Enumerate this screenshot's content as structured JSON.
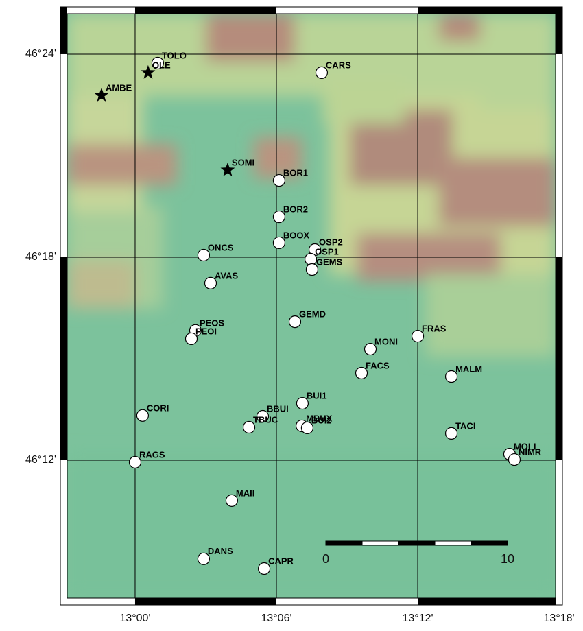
{
  "map": {
    "xlim": [
      12.9471,
      13.3024
    ],
    "ylim": [
      46.1287,
      46.4233
    ],
    "xticks": [
      {
        "value": 13.0,
        "label": "13°00'"
      },
      {
        "value": 13.1,
        "label": "13°06'"
      },
      {
        "value": 13.2,
        "label": "13°12'"
      },
      {
        "value": 13.3,
        "label": "13°18'"
      }
    ],
    "yticks": [
      {
        "value": 46.2,
        "label": "46°12'"
      },
      {
        "value": 46.3,
        "label": "46°18'"
      },
      {
        "value": 46.4,
        "label": "46°24'"
      }
    ],
    "grid": true,
    "stations": [
      {
        "name": "TOLO",
        "marker": "circle",
        "lon": 13.016,
        "lat": 46.3956
      },
      {
        "name": "OLE",
        "marker": "star",
        "lon": 13.0092,
        "lat": 46.3909
      },
      {
        "name": "AMBE",
        "marker": "star",
        "lon": 12.9762,
        "lat": 46.3797
      },
      {
        "name": "CARS",
        "marker": "circle",
        "lon": 13.132,
        "lat": 46.3909
      },
      {
        "name": "SOMI",
        "marker": "star",
        "lon": 13.0655,
        "lat": 46.3429
      },
      {
        "name": "BOR1",
        "marker": "circle",
        "lon": 13.1019,
        "lat": 46.3378
      },
      {
        "name": "BOR2",
        "marker": "circle",
        "lon": 13.1019,
        "lat": 46.3199
      },
      {
        "name": "BOOX",
        "marker": "circle",
        "lon": 13.1019,
        "lat": 46.3071
      },
      {
        "name": "OSP2",
        "marker": "circle",
        "lon": 13.1272,
        "lat": 46.3037
      },
      {
        "name": "OSP1",
        "marker": "circle",
        "lon": 13.1243,
        "lat": 46.299
      },
      {
        "name": "GEMS",
        "marker": "circle",
        "lon": 13.1252,
        "lat": 46.2939
      },
      {
        "name": "ONCS",
        "marker": "circle",
        "lon": 13.0485,
        "lat": 46.301
      },
      {
        "name": "AVAS",
        "marker": "circle",
        "lon": 13.0534,
        "lat": 46.2872
      },
      {
        "name": "GEMD",
        "marker": "circle",
        "lon": 13.1131,
        "lat": 46.2682
      },
      {
        "name": "PEOS",
        "marker": "circle",
        "lon": 13.0427,
        "lat": 46.2639
      },
      {
        "name": "PEOI",
        "marker": "circle",
        "lon": 13.0398,
        "lat": 46.2598
      },
      {
        "name": "FRAS",
        "marker": "circle",
        "lon": 13.2,
        "lat": 46.2611
      },
      {
        "name": "MONI",
        "marker": "circle",
        "lon": 13.1665,
        "lat": 46.2547
      },
      {
        "name": "FACS",
        "marker": "circle",
        "lon": 13.1602,
        "lat": 46.2429
      },
      {
        "name": "MALM",
        "marker": "circle",
        "lon": 13.2238,
        "lat": 46.2412
      },
      {
        "name": "BUI1",
        "marker": "circle",
        "lon": 13.1184,
        "lat": 46.228
      },
      {
        "name": "BBUI",
        "marker": "circle",
        "lon": 13.0903,
        "lat": 46.2216
      },
      {
        "name": "TBUC",
        "marker": "circle",
        "lon": 13.0806,
        "lat": 46.2162
      },
      {
        "name": "MBUX",
        "marker": "circle",
        "lon": 13.118,
        "lat": 46.2169
      },
      {
        "name": "BUI2",
        "marker": "circle",
        "lon": 13.1218,
        "lat": 46.2159
      },
      {
        "name": "CORI",
        "marker": "circle",
        "lon": 13.0053,
        "lat": 46.222
      },
      {
        "name": "TACI",
        "marker": "circle",
        "lon": 13.2238,
        "lat": 46.2132
      },
      {
        "name": "MOLI",
        "marker": "circle",
        "lon": 13.265,
        "lat": 46.203
      },
      {
        "name": "NIMR",
        "marker": "circle",
        "lon": 13.2684,
        "lat": 46.2003
      },
      {
        "name": "RAGS",
        "marker": "circle",
        "lon": 13.0,
        "lat": 46.199
      },
      {
        "name": "MAII",
        "marker": "circle",
        "lon": 13.0684,
        "lat": 46.1801
      },
      {
        "name": "DANS",
        "marker": "circle",
        "lon": 13.0485,
        "lat": 46.1514
      },
      {
        "name": "CAPR",
        "marker": "circle",
        "lon": 13.0913,
        "lat": 46.1466
      }
    ],
    "scale_bar": {
      "labels": [
        0,
        10
      ]
    }
  }
}
